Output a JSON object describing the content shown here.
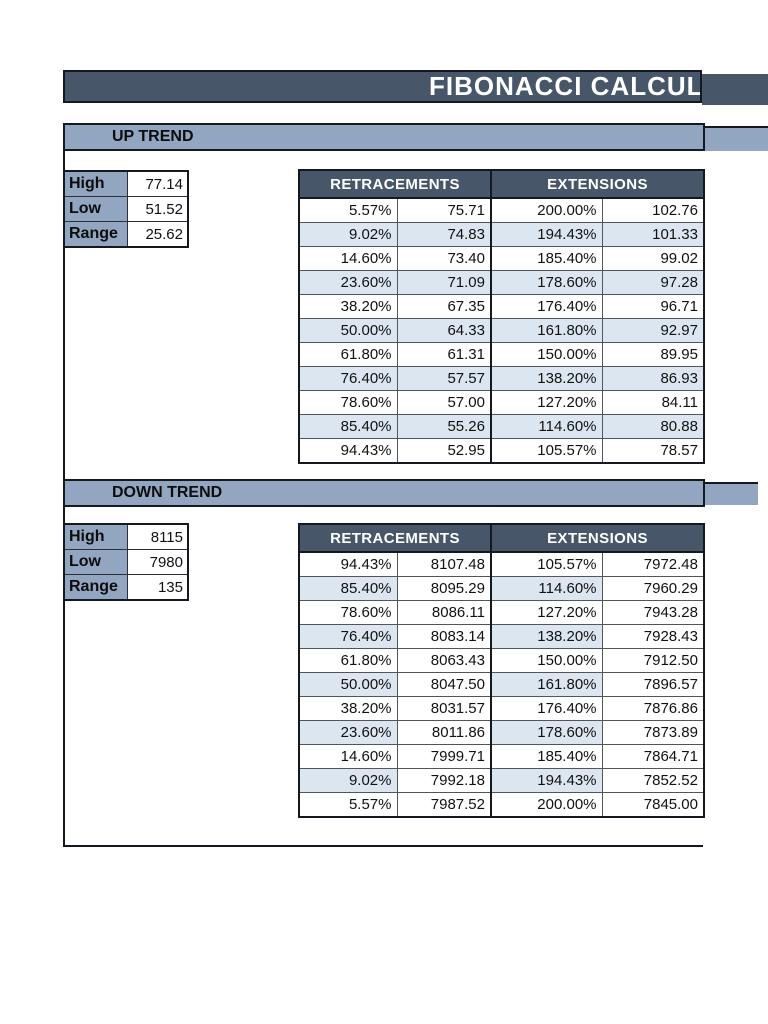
{
  "colors": {
    "header_dark": "#475769",
    "band_blue": "#92A5C1",
    "stripe_blue": "#DCE6F1"
  },
  "title": "FIBONACCI CALCULAT",
  "up": {
    "section_label": "UP TREND",
    "summary": [
      {
        "label": "High",
        "value": "77.14"
      },
      {
        "label": "Low",
        "value": "51.52"
      },
      {
        "label": "Range",
        "value": "25.62"
      }
    ],
    "table": {
      "headers": [
        "RETRACEMENTS",
        "EXTENSIONS"
      ],
      "rows": [
        [
          "5.57%",
          "75.71",
          "200.00%",
          "102.76"
        ],
        [
          "9.02%",
          "74.83",
          "194.43%",
          "101.33"
        ],
        [
          "14.60%",
          "73.40",
          "185.40%",
          "99.02"
        ],
        [
          "23.60%",
          "71.09",
          "178.60%",
          "97.28"
        ],
        [
          "38.20%",
          "67.35",
          "176.40%",
          "96.71"
        ],
        [
          "50.00%",
          "64.33",
          "161.80%",
          "92.97"
        ],
        [
          "61.80%",
          "61.31",
          "150.00%",
          "89.95"
        ],
        [
          "76.40%",
          "57.57",
          "138.20%",
          "86.93"
        ],
        [
          "78.60%",
          "57.00",
          "127.20%",
          "84.11"
        ],
        [
          "85.40%",
          "55.26",
          "114.60%",
          "80.88"
        ],
        [
          "94.43%",
          "52.95",
          "105.57%",
          "78.57"
        ]
      ]
    }
  },
  "down": {
    "section_label": "DOWN TREND",
    "summary": [
      {
        "label": "High",
        "value": "8115"
      },
      {
        "label": "Low",
        "value": "7980"
      },
      {
        "label": "Range",
        "value": "135"
      }
    ],
    "table": {
      "headers": [
        "RETRACEMENTS",
        "EXTENSIONS"
      ],
      "rows": [
        [
          "94.43%",
          "8107.48",
          "105.57%",
          "7972.48"
        ],
        [
          "85.40%",
          "8095.29",
          "114.60%",
          "7960.29"
        ],
        [
          "78.60%",
          "8086.11",
          "127.20%",
          "7943.28"
        ],
        [
          "76.40%",
          "8083.14",
          "138.20%",
          "7928.43"
        ],
        [
          "61.80%",
          "8063.43",
          "150.00%",
          "7912.50"
        ],
        [
          "50.00%",
          "8047.50",
          "161.80%",
          "7896.57"
        ],
        [
          "38.20%",
          "8031.57",
          "176.40%",
          "7876.86"
        ],
        [
          "23.60%",
          "8011.86",
          "178.60%",
          "7873.89"
        ],
        [
          "14.60%",
          "7999.71",
          "185.40%",
          "7864.71"
        ],
        [
          "9.02%",
          "7992.18",
          "194.43%",
          "7852.52"
        ],
        [
          "5.57%",
          "7987.52",
          "200.00%",
          "7845.00"
        ]
      ]
    }
  }
}
